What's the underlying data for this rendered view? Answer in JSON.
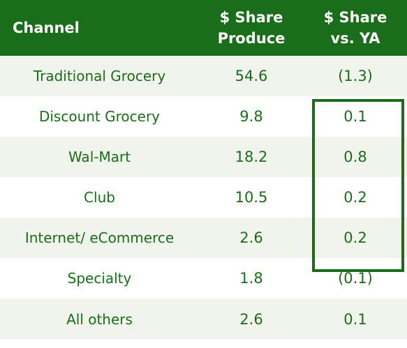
{
  "chart_data": {
    "type": "table",
    "columns": [
      {
        "key": "channel",
        "lines": [
          "Channel"
        ]
      },
      {
        "key": "share_produce",
        "lines": [
          "$ Share",
          "Produce"
        ]
      },
      {
        "key": "share_vs_ya",
        "lines": [
          "$ Share",
          "vs. YA"
        ]
      }
    ],
    "rows": [
      {
        "channel": "Traditional Grocery",
        "share_produce": "54.6",
        "share_vs_ya": "(1.3)"
      },
      {
        "channel": "Discount Grocery",
        "share_produce": "9.8",
        "share_vs_ya": "0.1"
      },
      {
        "channel": "Wal-Mart",
        "share_produce": "18.2",
        "share_vs_ya": "0.8"
      },
      {
        "channel": "Club",
        "share_produce": "10.5",
        "share_vs_ya": "0.2"
      },
      {
        "channel": "Internet/ eCommerce",
        "share_produce": "2.6",
        "share_vs_ya": "0.2"
      },
      {
        "channel": "Specialty",
        "share_produce": "1.8",
        "share_vs_ya": "(0.1)"
      },
      {
        "channel": "All others",
        "share_produce": "2.6",
        "share_vs_ya": "0.1"
      }
    ],
    "highlight": {
      "column": "share_vs_ya",
      "rows": [
        "Discount Grocery",
        "Wal-Mart",
        "Club",
        "Internet/ eCommerce"
      ]
    },
    "colors": {
      "header_background": "#1a6d1a",
      "header_text": "#ffffff",
      "body_text": "#1a6d1a",
      "band_odd": "#f1f4ec",
      "band_even": "#ffffff",
      "highlight_border": "#1a6d1a"
    }
  }
}
